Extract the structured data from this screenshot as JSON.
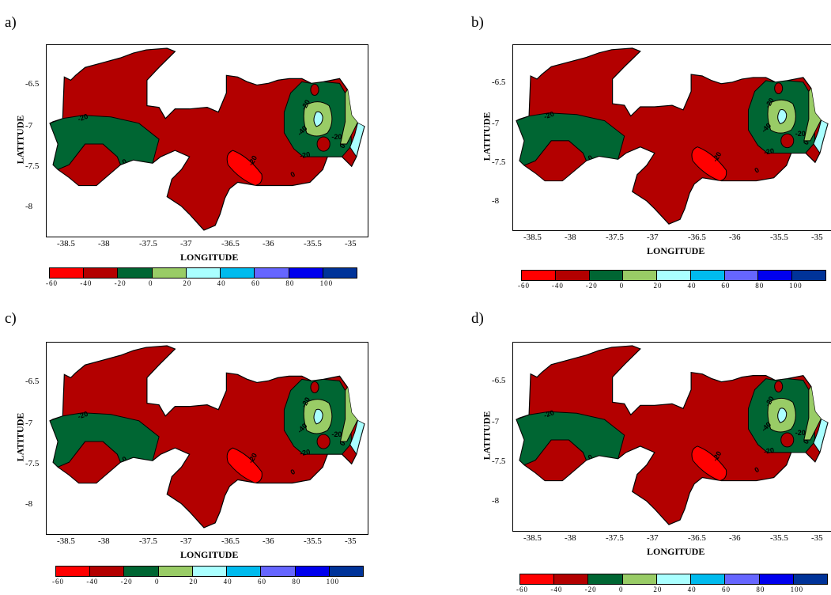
{
  "panels": [
    {
      "label": "a)"
    },
    {
      "label": "b)"
    },
    {
      "label": "c)"
    },
    {
      "label": "d)"
    }
  ],
  "axes": {
    "xlabel": "LONGITUDE",
    "ylabel": "LATITUDE",
    "xticks": [
      "-38.5",
      "-38",
      "-37.5",
      "-37",
      "-36.5",
      "-36",
      "-35.5",
      "-35"
    ],
    "yticks": [
      "-6.5",
      "-7",
      "-7.5",
      "-8"
    ]
  },
  "colorbar": {
    "labels": [
      "-60",
      "-40",
      "-20",
      "0",
      "20",
      "40",
      "60",
      "80",
      "100"
    ],
    "colors": [
      "#ff0000",
      "#b30000",
      "#006633",
      "#99cc66",
      "#aaffff",
      "#00bbee",
      "#6666ff",
      "#0000ee",
      "#003399"
    ]
  },
  "contour_labels": [
    "-20",
    "0",
    "-20",
    "-40",
    "-20",
    "-20",
    "0",
    "0",
    "-20"
  ],
  "map_colors": {
    "dark_red": "#b30000",
    "red": "#ff0000",
    "dark_green": "#006633",
    "light_green": "#99cc66",
    "light_cyan": "#aaffff",
    "cyan": "#00bbee"
  }
}
